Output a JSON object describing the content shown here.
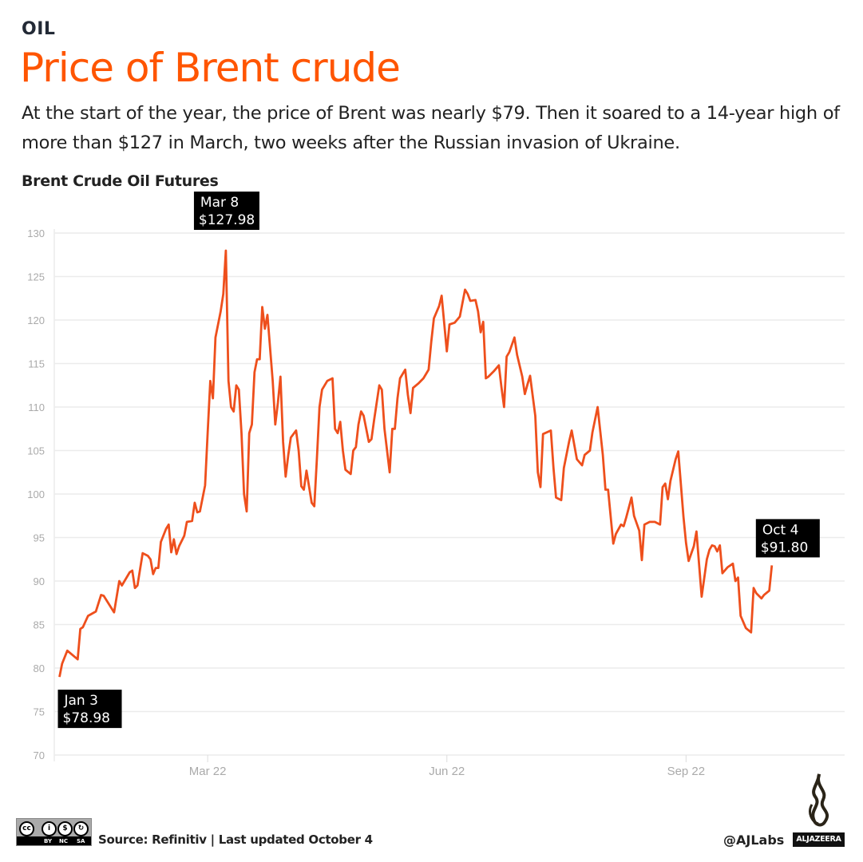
{
  "header": {
    "kicker": "OIL",
    "title": "Price of Brent crude",
    "subtitle": "At the start of the year, the price of Brent was nearly $79. Then it soared to a 14-year high of more than $127 in March, two weeks after the Russian invasion of Ukraine."
  },
  "footer": {
    "source": "Source: Refinitiv | Last updated October 4",
    "handle": "@AJLabs",
    "brand": "ALJAZEERA",
    "license": [
      "BY",
      "NC",
      "SA"
    ]
  },
  "colors": {
    "line": "#ee4f1c",
    "title": "#ff5500",
    "grid": "#ececec",
    "tick": "#aaaaaa",
    "annotation_bg": "#000000"
  },
  "chart_data": {
    "type": "line",
    "title": "Brent Crude Oil Futures",
    "xlim": [
      "2022-01-01",
      "2022-11-01"
    ],
    "ylim": [
      70,
      130
    ],
    "yticks": [
      70,
      75,
      80,
      85,
      90,
      95,
      100,
      105,
      110,
      115,
      120,
      125,
      130
    ],
    "xticks": [
      {
        "date": "2022-03-01",
        "label": "Mar 22"
      },
      {
        "date": "2022-06-01",
        "label": "Jun 22"
      },
      {
        "date": "2022-09-01",
        "label": "Sep 22"
      }
    ],
    "grid": true,
    "annotations": [
      {
        "date": "2022-01-03",
        "label": "Jan 3",
        "value_label": "$78.98"
      },
      {
        "date": "2022-03-08",
        "label": "Mar 8",
        "value_label": "$127.98"
      },
      {
        "date": "2022-10-04",
        "label": "Oct 4",
        "value_label": "$91.80"
      }
    ],
    "series": [
      {
        "points": [
          [
            "2022-01-03",
            78.98
          ],
          [
            "2022-01-04",
            80.5
          ],
          [
            "2022-01-06",
            82
          ],
          [
            "2022-01-10",
            81
          ],
          [
            "2022-01-11",
            84.5
          ],
          [
            "2022-01-12",
            84.7
          ],
          [
            "2022-01-14",
            86
          ],
          [
            "2022-01-17",
            86.5
          ],
          [
            "2022-01-19",
            88.4
          ],
          [
            "2022-01-20",
            88.3
          ],
          [
            "2022-01-24",
            86.4
          ],
          [
            "2022-01-26",
            90
          ],
          [
            "2022-01-27",
            89.5
          ],
          [
            "2022-01-30",
            91
          ],
          [
            "2022-01-31",
            91.2
          ],
          [
            "2022-02-01",
            89.2
          ],
          [
            "2022-02-02",
            89.5
          ],
          [
            "2022-02-04",
            93.2
          ],
          [
            "2022-02-06",
            92.9
          ],
          [
            "2022-02-07",
            92.5
          ],
          [
            "2022-02-08",
            90.8
          ],
          [
            "2022-02-09",
            91.5
          ],
          [
            "2022-02-10",
            91.5
          ],
          [
            "2022-02-11",
            94.5
          ],
          [
            "2022-02-13",
            96
          ],
          [
            "2022-02-14",
            96.5
          ],
          [
            "2022-02-15",
            93.3
          ],
          [
            "2022-02-16",
            94.8
          ],
          [
            "2022-02-17",
            93.1
          ],
          [
            "2022-02-18",
            94
          ],
          [
            "2022-02-20",
            95.2
          ],
          [
            "2022-02-21",
            96.8
          ],
          [
            "2022-02-23",
            96.9
          ],
          [
            "2022-02-24",
            99
          ],
          [
            "2022-02-25",
            97.9
          ],
          [
            "2022-02-26",
            98
          ],
          [
            "2022-02-28",
            101
          ],
          [
            "2022-03-01",
            107
          ],
          [
            "2022-03-02",
            113
          ],
          [
            "2022-03-03",
            111
          ],
          [
            "2022-03-04",
            118
          ],
          [
            "2022-03-06",
            121
          ],
          [
            "2022-03-07",
            123
          ],
          [
            "2022-03-08",
            127.98
          ],
          [
            "2022-03-09",
            113
          ],
          [
            "2022-03-10",
            110
          ],
          [
            "2022-03-11",
            109.5
          ],
          [
            "2022-03-12",
            112.5
          ],
          [
            "2022-03-13",
            112
          ],
          [
            "2022-03-14",
            107
          ],
          [
            "2022-03-15",
            100
          ],
          [
            "2022-03-16",
            98
          ],
          [
            "2022-03-17",
            107
          ],
          [
            "2022-03-18",
            108
          ],
          [
            "2022-03-19",
            114
          ],
          [
            "2022-03-20",
            115.5
          ],
          [
            "2022-03-21",
            115.5
          ],
          [
            "2022-03-22",
            121.5
          ],
          [
            "2022-03-23",
            119
          ],
          [
            "2022-03-24",
            120.6
          ],
          [
            "2022-03-26",
            113
          ],
          [
            "2022-03-27",
            108
          ],
          [
            "2022-03-28",
            110.5
          ],
          [
            "2022-03-29",
            113.5
          ],
          [
            "2022-03-30",
            106
          ],
          [
            "2022-03-31",
            102
          ],
          [
            "2022-04-01",
            104.5
          ],
          [
            "2022-04-02",
            106.5
          ],
          [
            "2022-04-04",
            107.3
          ],
          [
            "2022-04-05",
            105
          ],
          [
            "2022-04-06",
            100.9
          ],
          [
            "2022-04-07",
            100.5
          ],
          [
            "2022-04-08",
            102.7
          ],
          [
            "2022-04-10",
            99
          ],
          [
            "2022-04-11",
            98.6
          ],
          [
            "2022-04-12",
            104
          ],
          [
            "2022-04-13",
            110
          ],
          [
            "2022-04-14",
            112
          ],
          [
            "2022-04-16",
            113
          ],
          [
            "2022-04-18",
            113.3
          ],
          [
            "2022-04-19",
            107.5
          ],
          [
            "2022-04-20",
            107
          ],
          [
            "2022-04-21",
            108.3
          ],
          [
            "2022-04-22",
            105
          ],
          [
            "2022-04-23",
            102.8
          ],
          [
            "2022-04-25",
            102.3
          ],
          [
            "2022-04-26",
            105
          ],
          [
            "2022-04-27",
            105.4
          ],
          [
            "2022-04-28",
            108
          ],
          [
            "2022-04-29",
            109.5
          ],
          [
            "2022-04-30",
            109
          ],
          [
            "2022-05-02",
            106
          ],
          [
            "2022-05-03",
            106.3
          ],
          [
            "2022-05-04",
            108.5
          ],
          [
            "2022-05-06",
            112.5
          ],
          [
            "2022-05-07",
            112
          ],
          [
            "2022-05-08",
            107.5
          ],
          [
            "2022-05-10",
            102.5
          ],
          [
            "2022-05-11",
            107.5
          ],
          [
            "2022-05-12",
            107.5
          ],
          [
            "2022-05-13",
            111
          ],
          [
            "2022-05-14",
            113.3
          ],
          [
            "2022-05-16",
            114.3
          ],
          [
            "2022-05-17",
            111.4
          ],
          [
            "2022-05-18",
            109.3
          ],
          [
            "2022-05-19",
            112.2
          ],
          [
            "2022-05-21",
            112.7
          ],
          [
            "2022-05-23",
            113.3
          ],
          [
            "2022-05-25",
            114.3
          ],
          [
            "2022-05-26",
            117.5
          ],
          [
            "2022-05-27",
            120.2
          ],
          [
            "2022-05-29",
            121.6
          ],
          [
            "2022-05-30",
            122.8
          ],
          [
            "2022-06-01",
            116.4
          ],
          [
            "2022-06-02",
            119.5
          ],
          [
            "2022-06-04",
            119.7
          ],
          [
            "2022-06-06",
            120.4
          ],
          [
            "2022-06-08",
            123.5
          ],
          [
            "2022-06-09",
            123
          ],
          [
            "2022-06-10",
            122.2
          ],
          [
            "2022-06-12",
            122.3
          ],
          [
            "2022-06-13",
            121
          ],
          [
            "2022-06-14",
            118.6
          ],
          [
            "2022-06-15",
            119.8
          ],
          [
            "2022-06-16",
            113.3
          ],
          [
            "2022-06-17",
            113.5
          ],
          [
            "2022-06-19",
            114.1
          ],
          [
            "2022-06-21",
            114.8
          ],
          [
            "2022-06-22",
            112.3
          ],
          [
            "2022-06-23",
            110
          ],
          [
            "2022-06-24",
            115.8
          ],
          [
            "2022-06-25",
            116.3
          ],
          [
            "2022-06-27",
            118
          ],
          [
            "2022-06-28",
            116
          ],
          [
            "2022-06-30",
            113.5
          ],
          [
            "2022-07-01",
            111.5
          ],
          [
            "2022-07-02",
            112.6
          ],
          [
            "2022-07-03",
            113.6
          ],
          [
            "2022-07-05",
            109
          ],
          [
            "2022-07-06",
            102.5
          ],
          [
            "2022-07-07",
            100.8
          ],
          [
            "2022-07-08",
            106.9
          ],
          [
            "2022-07-11",
            107.3
          ],
          [
            "2022-07-12",
            103
          ],
          [
            "2022-07-13",
            99.6
          ],
          [
            "2022-07-15",
            99.3
          ],
          [
            "2022-07-16",
            103
          ],
          [
            "2022-07-18",
            106
          ],
          [
            "2022-07-19",
            107.3
          ],
          [
            "2022-07-21",
            104
          ],
          [
            "2022-07-23",
            103.3
          ],
          [
            "2022-07-24",
            104.5
          ],
          [
            "2022-07-26",
            105
          ],
          [
            "2022-07-27",
            107.1
          ],
          [
            "2022-07-29",
            110
          ],
          [
            "2022-07-31",
            104.5
          ],
          [
            "2022-08-01",
            100.5
          ],
          [
            "2022-08-02",
            100.5
          ],
          [
            "2022-08-04",
            94.3
          ],
          [
            "2022-08-05",
            95.4
          ],
          [
            "2022-08-07",
            96.5
          ],
          [
            "2022-08-08",
            96.3
          ],
          [
            "2022-08-09",
            97.3
          ],
          [
            "2022-08-11",
            99.6
          ],
          [
            "2022-08-12",
            97.5
          ],
          [
            "2022-08-14",
            95.8
          ],
          [
            "2022-08-15",
            92.4
          ],
          [
            "2022-08-16",
            96.5
          ],
          [
            "2022-08-18",
            96.8
          ],
          [
            "2022-08-20",
            96.8
          ],
          [
            "2022-08-22",
            96.5
          ],
          [
            "2022-08-23",
            100.8
          ],
          [
            "2022-08-24",
            101.2
          ],
          [
            "2022-08-25",
            99.4
          ],
          [
            "2022-08-26",
            101.5
          ],
          [
            "2022-08-28",
            104
          ],
          [
            "2022-08-29",
            104.9
          ],
          [
            "2022-08-31",
            97.4
          ],
          [
            "2022-09-01",
            94.4
          ],
          [
            "2022-09-02",
            92.3
          ],
          [
            "2022-09-04",
            94
          ],
          [
            "2022-09-05",
            95.7
          ],
          [
            "2022-09-07",
            88.2
          ],
          [
            "2022-09-09",
            92.5
          ],
          [
            "2022-09-10",
            93.6
          ],
          [
            "2022-09-11",
            94.1
          ],
          [
            "2022-09-12",
            94
          ],
          [
            "2022-09-13",
            93.4
          ],
          [
            "2022-09-14",
            94.1
          ],
          [
            "2022-09-15",
            90.9
          ],
          [
            "2022-09-17",
            91.6
          ],
          [
            "2022-09-19",
            92
          ],
          [
            "2022-09-20",
            90
          ],
          [
            "2022-09-21",
            90.4
          ],
          [
            "2022-09-22",
            86
          ],
          [
            "2022-09-24",
            84.6
          ],
          [
            "2022-09-26",
            84.1
          ],
          [
            "2022-09-27",
            89.2
          ],
          [
            "2022-09-28",
            88.6
          ],
          [
            "2022-09-30",
            88
          ],
          [
            "2022-10-01",
            88.4
          ],
          [
            "2022-10-03",
            88.9
          ],
          [
            "2022-10-04",
            91.8
          ]
        ]
      }
    ]
  }
}
